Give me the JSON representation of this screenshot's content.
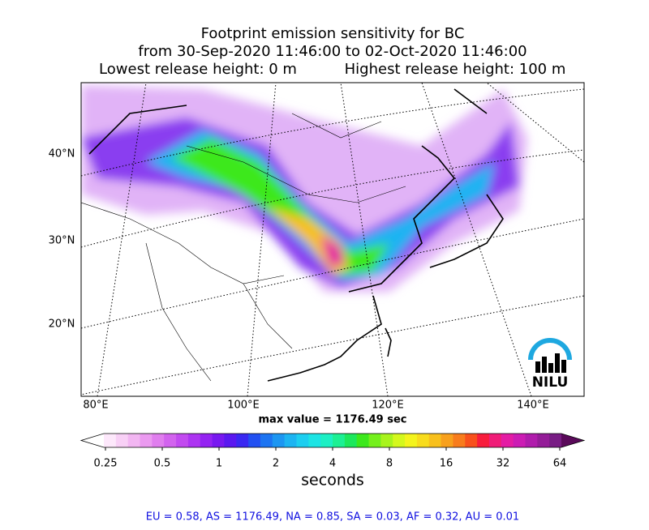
{
  "title": [
    "Footprint emission sensitivity for BC",
    "from 30-Sep-2020 11:46:00 to 02-Oct-2020 11:46:00"
  ],
  "release_heights": [
    "Lowest release height: 0 m",
    "Highest release height: 100 m"
  ],
  "map": {
    "lat_labels": [
      "40°N",
      "30°N",
      "20°N"
    ],
    "lon_labels": [
      "80°E",
      "100°E",
      "120°E",
      "140°E"
    ],
    "logo": "NILU"
  },
  "max_value_label": "max value = 1176.49 sec",
  "colorbar": {
    "ticks": [
      "0.25",
      "0.5",
      "1",
      "2",
      "4",
      "8",
      "16",
      "32",
      "64"
    ],
    "label": "seconds",
    "under_color": "#ffffff",
    "over_color": "#5a0a5a",
    "colors": [
      "#fde8fb",
      "#f8d0f6",
      "#f2b6f2",
      "#eb9af0",
      "#e07eee",
      "#d263ee",
      "#c24af0",
      "#ad34f2",
      "#9422f2",
      "#7818f0",
      "#5a18f0",
      "#3a28f2",
      "#2250f2",
      "#1c74f2",
      "#1c96f2",
      "#1cb4f2",
      "#1ccef0",
      "#1ce4e4",
      "#1cf0c4",
      "#1cf094",
      "#1ce85c",
      "#3ce81c",
      "#74f01c",
      "#a8f41c",
      "#d4f81c",
      "#f4f41c",
      "#f8dc1c",
      "#f8c01c",
      "#f8a01c",
      "#f87c1c",
      "#f8501c",
      "#f81c3c",
      "#f01c78",
      "#e41ca4",
      "#cc1cb4",
      "#b01cac",
      "#941c98",
      "#781c84"
    ]
  },
  "footer": "EU = 0.58,  AS = 1176.49,  NA = 0.85,  SA = 0.03,  AF = 0.32,  AU = 0.01"
}
